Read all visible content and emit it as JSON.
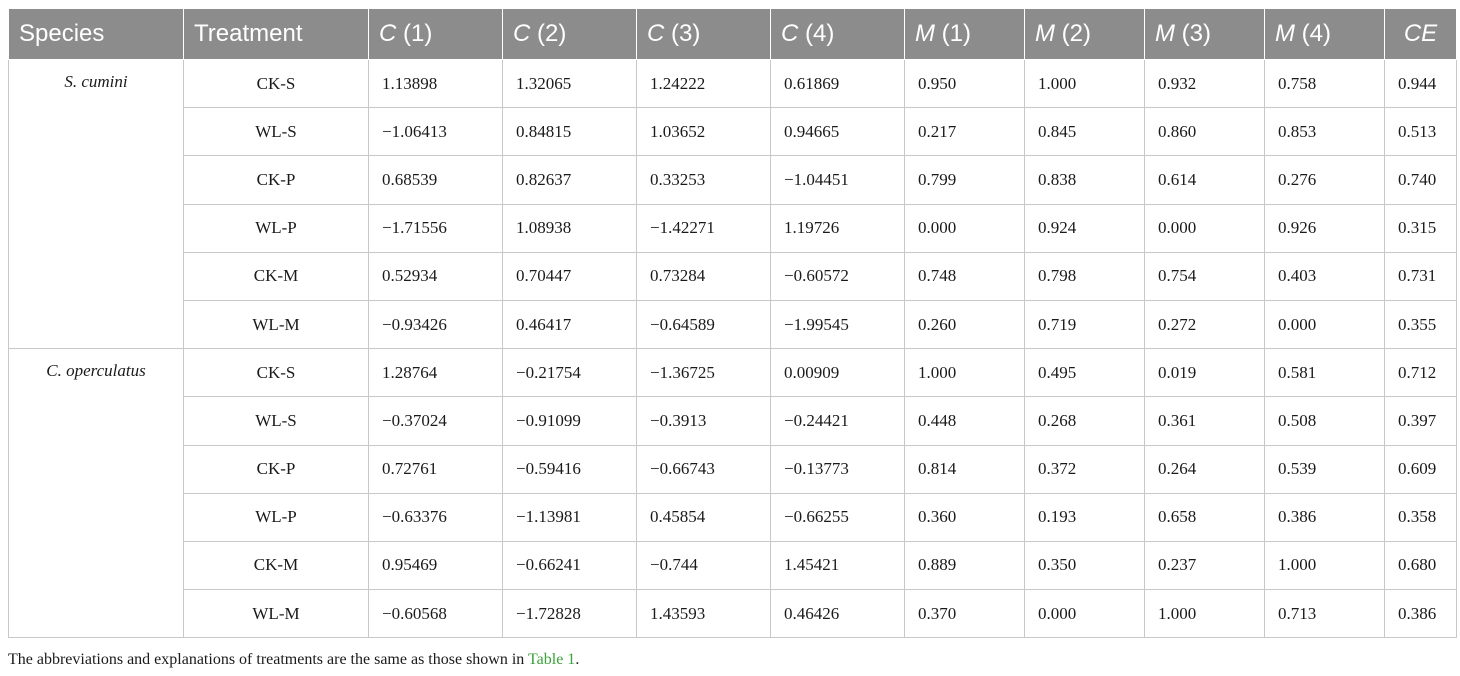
{
  "table": {
    "headers": [
      {
        "italic": "",
        "rest": "Species"
      },
      {
        "italic": "",
        "rest": "Treatment"
      },
      {
        "italic": "C",
        "rest": " (1)"
      },
      {
        "italic": "C",
        "rest": " (2)"
      },
      {
        "italic": "C",
        "rest": " (3)"
      },
      {
        "italic": "C",
        "rest": " (4)"
      },
      {
        "italic": "M",
        "rest": " (1)"
      },
      {
        "italic": "M",
        "rest": " (2)"
      },
      {
        "italic": "M",
        "rest": " (3)"
      },
      {
        "italic": "M",
        "rest": " (4)"
      },
      {
        "italic": "CE",
        "rest": ""
      }
    ],
    "groups": [
      {
        "species": "S. cumini",
        "rows": [
          {
            "treatment": "CK-S",
            "values": [
              "1.13898",
              "1.32065",
              "1.24222",
              "0.61869",
              "0.950",
              "1.000",
              "0.932",
              "0.758",
              "0.944"
            ]
          },
          {
            "treatment": "WL-S",
            "values": [
              "−1.06413",
              "0.84815",
              "1.03652",
              "0.94665",
              "0.217",
              "0.845",
              "0.860",
              "0.853",
              "0.513"
            ]
          },
          {
            "treatment": "CK-P",
            "values": [
              "0.68539",
              "0.82637",
              "0.33253",
              "−1.04451",
              "0.799",
              "0.838",
              "0.614",
              "0.276",
              "0.740"
            ]
          },
          {
            "treatment": "WL-P",
            "values": [
              "−1.71556",
              "1.08938",
              "−1.42271",
              "1.19726",
              "0.000",
              "0.924",
              "0.000",
              "0.926",
              "0.315"
            ]
          },
          {
            "treatment": "CK-M",
            "values": [
              "0.52934",
              "0.70447",
              "0.73284",
              "−0.60572",
              "0.748",
              "0.798",
              "0.754",
              "0.403",
              "0.731"
            ]
          },
          {
            "treatment": "WL-M",
            "values": [
              "−0.93426",
              "0.46417",
              "−0.64589",
              "−1.99545",
              "0.260",
              "0.719",
              "0.272",
              "0.000",
              "0.355"
            ]
          }
        ]
      },
      {
        "species": "C. operculatus",
        "rows": [
          {
            "treatment": "CK-S",
            "values": [
              "1.28764",
              "−0.21754",
              "−1.36725",
              "0.00909",
              "1.000",
              "0.495",
              "0.019",
              "0.581",
              "0.712"
            ]
          },
          {
            "treatment": "WL-S",
            "values": [
              "−0.37024",
              "−0.91099",
              "−0.3913",
              "−0.24421",
              "0.448",
              "0.268",
              "0.361",
              "0.508",
              "0.397"
            ]
          },
          {
            "treatment": "CK-P",
            "values": [
              "0.72761",
              "−0.59416",
              "−0.66743",
              "−0.13773",
              "0.814",
              "0.372",
              "0.264",
              "0.539",
              "0.609"
            ]
          },
          {
            "treatment": "WL-P",
            "values": [
              "−0.63376",
              "−1.13981",
              "0.45854",
              "−0.66255",
              "0.360",
              "0.193",
              "0.658",
              "0.386",
              "0.358"
            ]
          },
          {
            "treatment": "CK-M",
            "values": [
              "0.95469",
              "−0.66241",
              "−0.744",
              "1.45421",
              "0.889",
              "0.350",
              "0.237",
              "1.000",
              "0.680"
            ]
          },
          {
            "treatment": "WL-M",
            "values": [
              "−0.60568",
              "−1.72828",
              "1.43593",
              "0.46426",
              "0.370",
              "0.000",
              "1.000",
              "0.713",
              "0.386"
            ]
          }
        ]
      }
    ]
  },
  "footnote": {
    "text": "The abbreviations and explanations of treatments are the same as those shown in ",
    "link": "Table 1",
    "end": "."
  },
  "colors": {
    "header_bg": "#8c8c8c",
    "header_text": "#ffffff",
    "grid": "#c8c8c8",
    "link": "#3aa23a"
  }
}
